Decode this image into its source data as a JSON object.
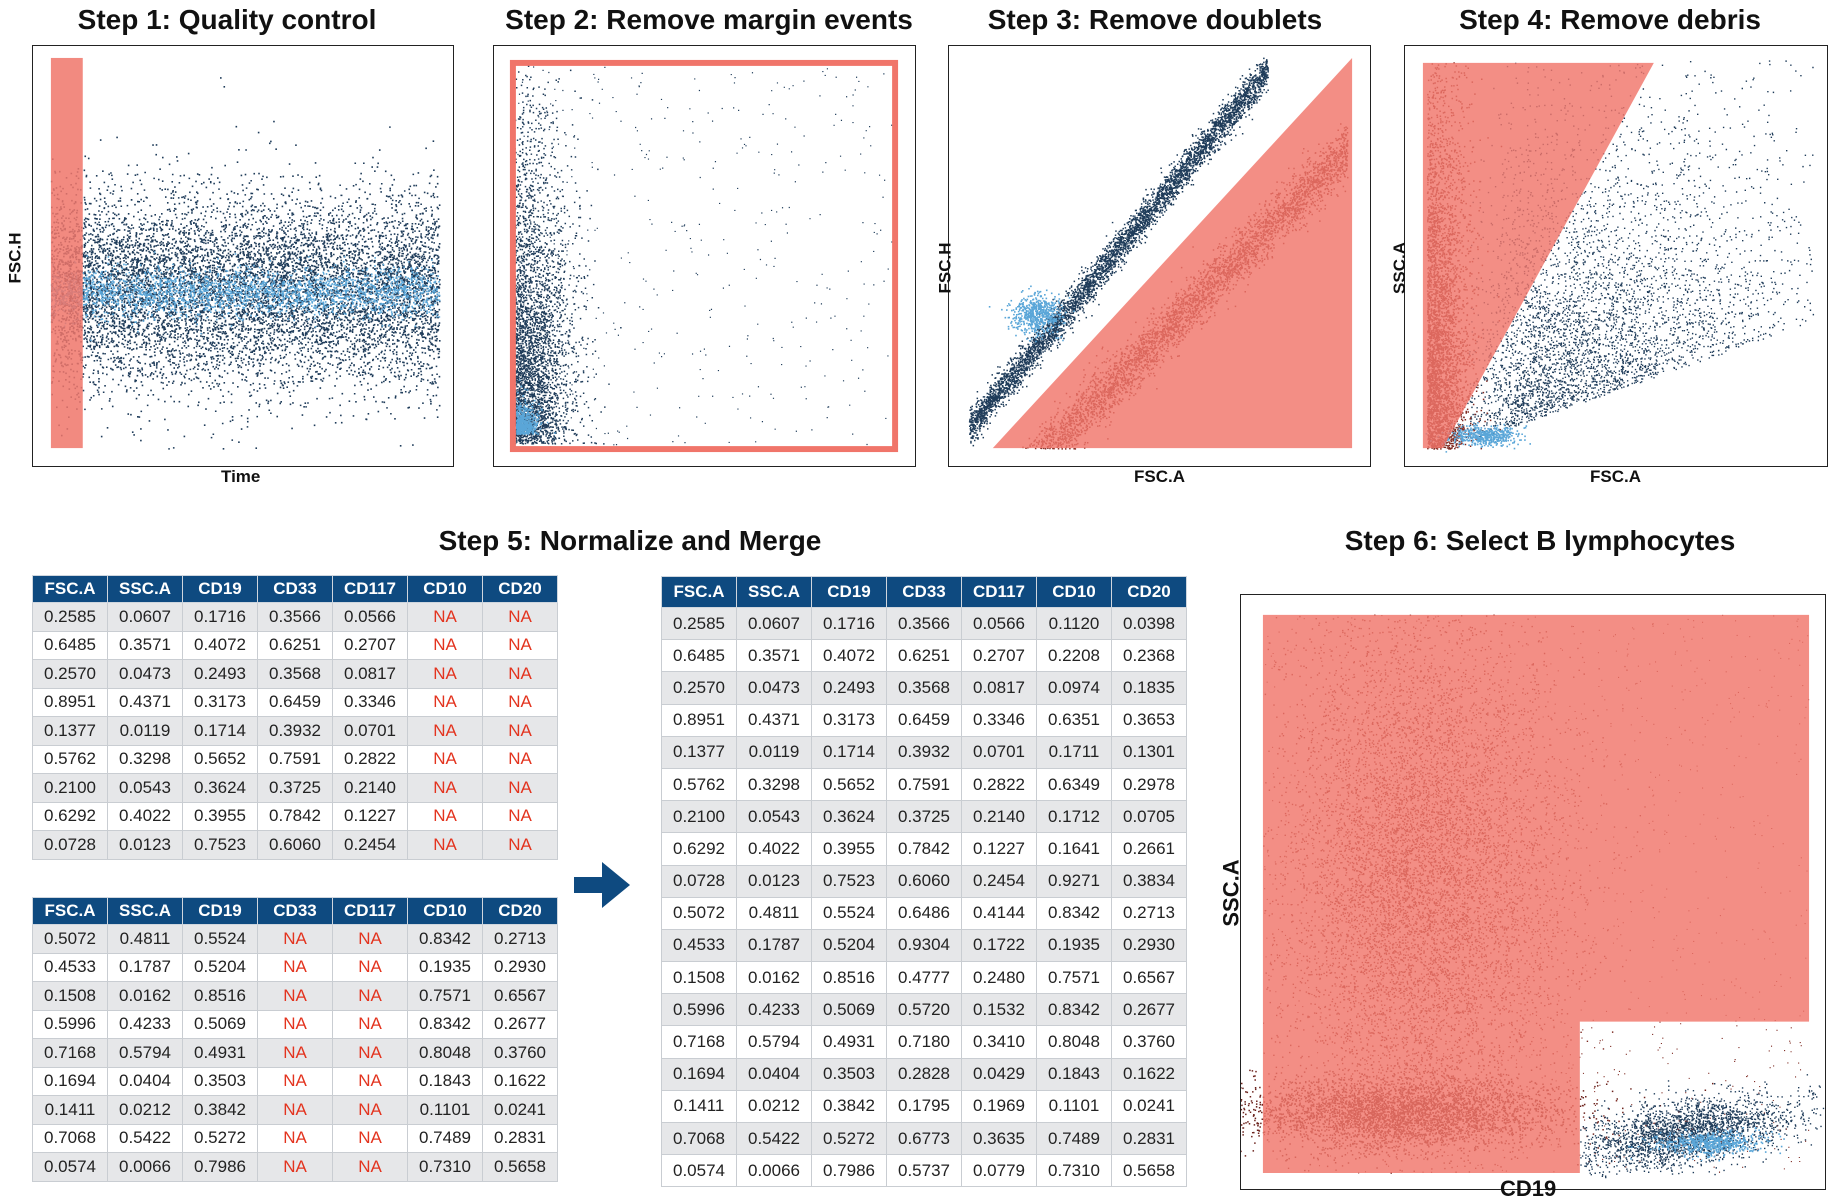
{
  "colors": {
    "gate": "#f0756a",
    "events": "#1f3c5a",
    "events_dense": "#5aa6d8",
    "header_bg": "#0e4a80",
    "na_text": "#e3341f",
    "arrow": "#0e4a80"
  },
  "steps": {
    "s1": {
      "title": "Step 1: Quality control",
      "xlabel": "Time",
      "ylabel": "FSC.H"
    },
    "s2": {
      "title": "Step 2: Remove margin events",
      "xlabel": "",
      "ylabel": ""
    },
    "s3": {
      "title": "Step 3: Remove doublets",
      "xlabel": "FSC.A",
      "ylabel": "FSC.H"
    },
    "s4": {
      "title": "Step 4: Remove debris",
      "xlabel": "FSC.A",
      "ylabel": "SSC.A"
    },
    "s5": {
      "title": "Step 5: Normalize and Merge"
    },
    "s6": {
      "title": "Step 6: Select B lymphocytes",
      "xlabel": "CD19",
      "ylabel": "SSC.A"
    }
  },
  "icons": {
    "merge_arrow": "right-arrow-icon"
  },
  "tables": {
    "columns": [
      "FSC.A",
      "SSC.A",
      "CD19",
      "CD33",
      "CD117",
      "CD10",
      "CD20"
    ],
    "table1": [
      [
        "0.2585",
        "0.0607",
        "0.1716",
        "0.3566",
        "0.0566",
        "NA",
        "NA"
      ],
      [
        "0.6485",
        "0.3571",
        "0.4072",
        "0.6251",
        "0.2707",
        "NA",
        "NA"
      ],
      [
        "0.2570",
        "0.0473",
        "0.2493",
        "0.3568",
        "0.0817",
        "NA",
        "NA"
      ],
      [
        "0.8951",
        "0.4371",
        "0.3173",
        "0.6459",
        "0.3346",
        "NA",
        "NA"
      ],
      [
        "0.1377",
        "0.0119",
        "0.1714",
        "0.3932",
        "0.0701",
        "NA",
        "NA"
      ],
      [
        "0.5762",
        "0.3298",
        "0.5652",
        "0.7591",
        "0.2822",
        "NA",
        "NA"
      ],
      [
        "0.2100",
        "0.0543",
        "0.3624",
        "0.3725",
        "0.2140",
        "NA",
        "NA"
      ],
      [
        "0.6292",
        "0.4022",
        "0.3955",
        "0.7842",
        "0.1227",
        "NA",
        "NA"
      ],
      [
        "0.0728",
        "0.0123",
        "0.7523",
        "0.6060",
        "0.2454",
        "NA",
        "NA"
      ]
    ],
    "table2": [
      [
        "0.5072",
        "0.4811",
        "0.5524",
        "NA",
        "NA",
        "0.8342",
        "0.2713"
      ],
      [
        "0.4533",
        "0.1787",
        "0.5204",
        "NA",
        "NA",
        "0.1935",
        "0.2930"
      ],
      [
        "0.1508",
        "0.0162",
        "0.8516",
        "NA",
        "NA",
        "0.7571",
        "0.6567"
      ],
      [
        "0.5996",
        "0.4233",
        "0.5069",
        "NA",
        "NA",
        "0.8342",
        "0.2677"
      ],
      [
        "0.7168",
        "0.5794",
        "0.4931",
        "NA",
        "NA",
        "0.8048",
        "0.3760"
      ],
      [
        "0.1694",
        "0.0404",
        "0.3503",
        "NA",
        "NA",
        "0.1843",
        "0.1622"
      ],
      [
        "0.1411",
        "0.0212",
        "0.3842",
        "NA",
        "NA",
        "0.1101",
        "0.0241"
      ],
      [
        "0.7068",
        "0.5422",
        "0.5272",
        "NA",
        "NA",
        "0.7489",
        "0.2831"
      ],
      [
        "0.0574",
        "0.0066",
        "0.7986",
        "NA",
        "NA",
        "0.7310",
        "0.5658"
      ]
    ],
    "merged": [
      [
        "0.2585",
        "0.0607",
        "0.1716",
        "0.3566",
        "0.0566",
        "0.1120",
        "0.0398"
      ],
      [
        "0.6485",
        "0.3571",
        "0.4072",
        "0.6251",
        "0.2707",
        "0.2208",
        "0.2368"
      ],
      [
        "0.2570",
        "0.0473",
        "0.2493",
        "0.3568",
        "0.0817",
        "0.0974",
        "0.1835"
      ],
      [
        "0.8951",
        "0.4371",
        "0.3173",
        "0.6459",
        "0.3346",
        "0.6351",
        "0.3653"
      ],
      [
        "0.1377",
        "0.0119",
        "0.1714",
        "0.3932",
        "0.0701",
        "0.1711",
        "0.1301"
      ],
      [
        "0.5762",
        "0.3298",
        "0.5652",
        "0.7591",
        "0.2822",
        "0.6349",
        "0.2978"
      ],
      [
        "0.2100",
        "0.0543",
        "0.3624",
        "0.3725",
        "0.2140",
        "0.1712",
        "0.0705"
      ],
      [
        "0.6292",
        "0.4022",
        "0.3955",
        "0.7842",
        "0.1227",
        "0.1641",
        "0.2661"
      ],
      [
        "0.0728",
        "0.0123",
        "0.7523",
        "0.6060",
        "0.2454",
        "0.9271",
        "0.3834"
      ],
      [
        "0.5072",
        "0.4811",
        "0.5524",
        "0.6486",
        "0.4144",
        "0.8342",
        "0.2713"
      ],
      [
        "0.4533",
        "0.1787",
        "0.5204",
        "0.9304",
        "0.1722",
        "0.1935",
        "0.2930"
      ],
      [
        "0.1508",
        "0.0162",
        "0.8516",
        "0.4777",
        "0.2480",
        "0.7571",
        "0.6567"
      ],
      [
        "0.5996",
        "0.4233",
        "0.5069",
        "0.5720",
        "0.1532",
        "0.8342",
        "0.2677"
      ],
      [
        "0.7168",
        "0.5794",
        "0.4931",
        "0.7180",
        "0.3410",
        "0.8048",
        "0.3760"
      ],
      [
        "0.1694",
        "0.0404",
        "0.3503",
        "0.2828",
        "0.0429",
        "0.1843",
        "0.1622"
      ],
      [
        "0.1411",
        "0.0212",
        "0.3842",
        "0.1795",
        "0.1969",
        "0.1101",
        "0.0241"
      ],
      [
        "0.7068",
        "0.5422",
        "0.5272",
        "0.6773",
        "0.3635",
        "0.7489",
        "0.2831"
      ],
      [
        "0.0574",
        "0.0066",
        "0.7986",
        "0.5737",
        "0.0779",
        "0.7310",
        "0.5658"
      ]
    ]
  }
}
